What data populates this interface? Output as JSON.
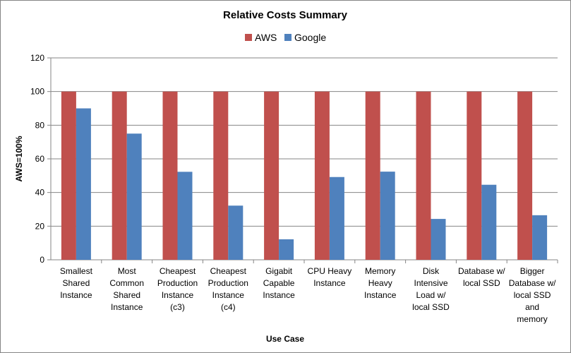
{
  "chart_data": {
    "type": "bar",
    "title": "Relative Costs Summary",
    "xlabel": "Use Case",
    "ylabel": "AWS=100%",
    "ylim": [
      0,
      120
    ],
    "yticks": [
      0,
      20,
      40,
      60,
      80,
      100,
      120
    ],
    "grid": true,
    "legend_position": "top",
    "categories": [
      [
        "Smallest",
        "Shared",
        "Instance"
      ],
      [
        "Most",
        "Common",
        "Shared",
        "Instance"
      ],
      [
        "Cheapest",
        "Production",
        "Instance",
        "(c3)"
      ],
      [
        "Cheapest",
        "Production",
        "Instance",
        "(c4)"
      ],
      [
        "Gigabit",
        "Capable",
        "Instance"
      ],
      [
        "CPU Heavy",
        "Instance"
      ],
      [
        "Memory",
        "Heavy",
        "Instance"
      ],
      [
        "Disk",
        "Intensive",
        "Load w/",
        "local SSD"
      ],
      [
        "Database w/",
        "local SSD"
      ],
      [
        "Bigger",
        "Database w/",
        "local SSD",
        "and",
        "memory"
      ]
    ],
    "series": [
      {
        "name": "AWS",
        "color": "#C0504D",
        "values": [
          100,
          100,
          100,
          100,
          100,
          100,
          100,
          100,
          100,
          100
        ]
      },
      {
        "name": "Google",
        "color": "#4F81BD",
        "values": [
          90,
          75,
          52.3,
          32.2,
          12.2,
          49.2,
          52.4,
          24.3,
          44.6,
          26.5
        ]
      }
    ]
  }
}
